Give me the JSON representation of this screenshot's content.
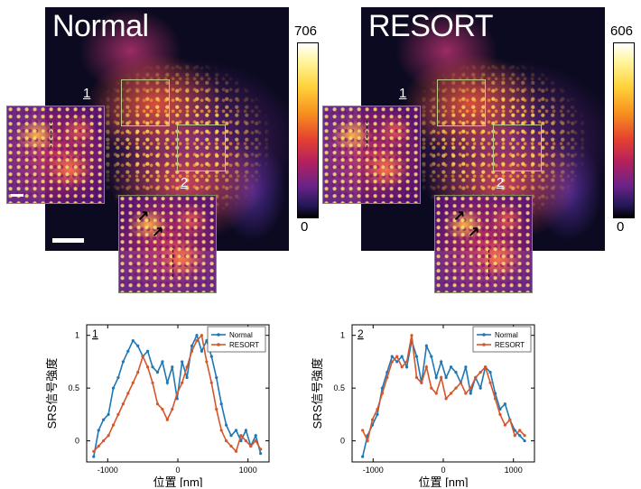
{
  "figure": {
    "panels": [
      {
        "title": "Normal",
        "colorbar_max": "706",
        "colorbar_min": "0",
        "roi_labels": [
          "1",
          "2"
        ]
      },
      {
        "title": "RESORT",
        "colorbar_max": "606",
        "colorbar_min": "0",
        "roi_labels": [
          "1",
          "2"
        ]
      }
    ],
    "colors": {
      "normal": "#1f77b4",
      "resort": "#d6562b"
    }
  },
  "chart_data": [
    {
      "type": "line",
      "panel_label": "1",
      "xlabel": "位置 [nm]",
      "ylabel": "SRS信号強度",
      "xlim": [
        -1300,
        1300
      ],
      "ylim": [
        -0.2,
        1.1
      ],
      "xticks": [
        -1000,
        0,
        1000
      ],
      "yticks": [
        0,
        0.5,
        1
      ],
      "xtick_labels": [
        "-1000",
        "0",
        "1000"
      ],
      "ytick_labels": [
        "0",
        "0.5",
        "1"
      ],
      "legend_position": "top-right",
      "series": [
        {
          "name": "Normal",
          "color": "#1f77b4",
          "x": [
            -1200,
            -1130,
            -1060,
            -990,
            -920,
            -850,
            -780,
            -710,
            -640,
            -570,
            -500,
            -430,
            -360,
            -290,
            -220,
            -150,
            -80,
            -10,
            60,
            130,
            200,
            270,
            340,
            410,
            480,
            550,
            620,
            690,
            760,
            830,
            900,
            970,
            1040,
            1110,
            1180
          ],
          "y": [
            -0.15,
            0.1,
            0.2,
            0.25,
            0.5,
            0.6,
            0.75,
            0.85,
            0.95,
            0.9,
            0.8,
            0.85,
            0.7,
            0.65,
            0.75,
            0.55,
            0.7,
            0.4,
            0.75,
            0.6,
            0.9,
            1.0,
            0.85,
            0.95,
            0.8,
            0.6,
            0.35,
            0.15,
            0.05,
            0.1,
            0.0,
            0.1,
            -0.05,
            0.05,
            -0.12
          ]
        },
        {
          "name": "RESORT",
          "color": "#d6562b",
          "x": [
            -1200,
            -1130,
            -1060,
            -990,
            -920,
            -850,
            -780,
            -710,
            -640,
            -570,
            -500,
            -430,
            -360,
            -290,
            -220,
            -150,
            -80,
            -10,
            60,
            130,
            200,
            270,
            340,
            410,
            480,
            550,
            620,
            690,
            760,
            830,
            900,
            970,
            1040,
            1110,
            1180
          ],
          "y": [
            -0.1,
            -0.05,
            0.0,
            0.05,
            0.15,
            0.25,
            0.35,
            0.45,
            0.55,
            0.65,
            0.8,
            0.7,
            0.55,
            0.35,
            0.3,
            0.2,
            0.3,
            0.45,
            0.55,
            0.7,
            0.85,
            0.95,
            1.0,
            0.75,
            0.55,
            0.3,
            0.1,
            0.0,
            -0.05,
            -0.1,
            0.05,
            0.0,
            -0.05,
            0.0,
            -0.08
          ]
        }
      ]
    },
    {
      "type": "line",
      "panel_label": "2",
      "xlabel": "位置 [nm]",
      "ylabel": "SRS信号強度",
      "xlim": [
        -1300,
        1300
      ],
      "ylim": [
        -0.2,
        1.1
      ],
      "xticks": [
        -1000,
        0,
        1000
      ],
      "yticks": [
        0,
        0.5,
        1
      ],
      "xtick_labels": [
        "-1000",
        "0",
        "1000"
      ],
      "ytick_labels": [
        "0",
        "0.5",
        "1"
      ],
      "legend_position": "top-right",
      "series": [
        {
          "name": "Normal",
          "color": "#1f77b4",
          "x": [
            -1150,
            -1080,
            -1010,
            -940,
            -870,
            -800,
            -730,
            -660,
            -590,
            -520,
            -450,
            -380,
            -310,
            -240,
            -170,
            -100,
            -30,
            40,
            110,
            180,
            250,
            320,
            390,
            460,
            530,
            600,
            670,
            740,
            810,
            880,
            950,
            1020,
            1090,
            1160
          ],
          "y": [
            -0.15,
            0.05,
            0.15,
            0.25,
            0.5,
            0.65,
            0.8,
            0.75,
            0.8,
            0.7,
            0.95,
            0.8,
            0.55,
            0.9,
            0.8,
            0.6,
            0.75,
            0.6,
            0.7,
            0.65,
            0.55,
            0.7,
            0.45,
            0.6,
            0.5,
            0.7,
            0.65,
            0.45,
            0.3,
            0.35,
            0.2,
            0.1,
            0.05,
            0.0
          ]
        },
        {
          "name": "RESORT",
          "color": "#d6562b",
          "x": [
            -1150,
            -1080,
            -1010,
            -940,
            -870,
            -800,
            -730,
            -660,
            -590,
            -520,
            -450,
            -380,
            -310,
            -240,
            -170,
            -100,
            -30,
            40,
            110,
            180,
            250,
            320,
            390,
            460,
            530,
            600,
            670,
            740,
            810,
            880,
            950,
            1020,
            1090,
            1160
          ],
          "y": [
            0.1,
            0.0,
            0.2,
            0.3,
            0.45,
            0.6,
            0.75,
            0.8,
            0.7,
            0.75,
            1.0,
            0.6,
            0.55,
            0.7,
            0.5,
            0.45,
            0.6,
            0.4,
            0.45,
            0.5,
            0.55,
            0.45,
            0.5,
            0.6,
            0.65,
            0.7,
            0.55,
            0.4,
            0.25,
            0.15,
            0.2,
            0.05,
            0.1,
            0.05
          ]
        }
      ]
    }
  ]
}
